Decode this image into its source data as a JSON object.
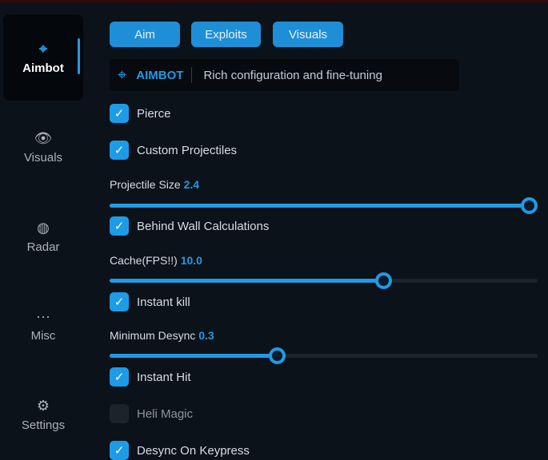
{
  "sidebar": {
    "items": [
      {
        "label": "Aimbot",
        "icon": "crosshair-icon",
        "active": true
      },
      {
        "label": "Visuals",
        "icon": "eye-icon"
      },
      {
        "label": "Radar",
        "icon": "globe-icon"
      },
      {
        "label": "Misc",
        "icon": "ellipsis-icon"
      },
      {
        "label": "Settings",
        "icon": "gear-icon"
      }
    ]
  },
  "tabs": [
    "Aim",
    "Exploits",
    "Visuals"
  ],
  "header": {
    "title": "AIMBOT",
    "subtitle": "Rich configuration and fine-tuning"
  },
  "options": {
    "pierce": {
      "label": "Pierce",
      "checked": true
    },
    "custom_projectiles": {
      "label": "Custom Projectiles",
      "checked": true
    },
    "projectile_size": {
      "label": "Projectile Size",
      "value": "2.4",
      "fill_percent": 98
    },
    "behind_wall": {
      "label": "Behind Wall Calculations",
      "checked": true
    },
    "cache": {
      "label": "Cache(FPS!!)",
      "value": "10.0",
      "fill_percent": 64
    },
    "instant_kill": {
      "label": "Instant kill",
      "checked": true
    },
    "min_desync": {
      "label": "Minimum Desync",
      "value": "0.3",
      "fill_percent": 39
    },
    "instant_hit": {
      "label": "Instant Hit",
      "checked": true
    },
    "heli_magic": {
      "label": "Heli Magic",
      "checked": false
    },
    "desync_keypress": {
      "label": "Desync On Keypress",
      "checked": true
    }
  },
  "colors": {
    "accent": "#1e9be6",
    "background": "#0c121a"
  }
}
